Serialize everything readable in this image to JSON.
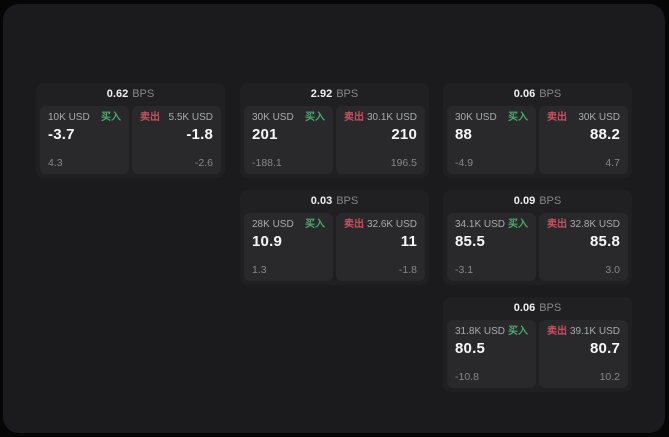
{
  "labels": {
    "bps_suffix": "BPS",
    "buy": "买入",
    "sell": "卖出"
  },
  "colors": {
    "buy_green": "#4aa96e",
    "sell_red": "#c4515f",
    "window_bg": "#1b1b1d",
    "card_bg": "#202022",
    "tile_bg": "#29292b"
  },
  "cards": [
    {
      "bps": "0.62",
      "buy": {
        "amount": "10K USD",
        "value": "-3.7",
        "delta": "4.3"
      },
      "sell": {
        "amount": "5.5K USD",
        "value": "-1.8",
        "delta": "-2.6"
      }
    },
    {
      "bps": "2.92",
      "buy": {
        "amount": "30K USD",
        "value": "201",
        "delta": "-188.1"
      },
      "sell": {
        "amount": "30.1K USD",
        "value": "210",
        "delta": "196.5"
      }
    },
    {
      "bps": "0.06",
      "buy": {
        "amount": "30K USD",
        "value": "88",
        "delta": "-4.9"
      },
      "sell": {
        "amount": "30K USD",
        "value": "88.2",
        "delta": "4.7"
      }
    },
    {
      "bps": "0.03",
      "buy": {
        "amount": "28K USD",
        "value": "10.9",
        "delta": "1.3"
      },
      "sell": {
        "amount": "32.6K USD",
        "value": "11",
        "delta": "-1.8"
      }
    },
    {
      "bps": "0.09",
      "buy": {
        "amount": "34.1K USD",
        "value": "85.5",
        "delta": "-3.1"
      },
      "sell": {
        "amount": "32.8K USD",
        "value": "85.8",
        "delta": "3.0"
      }
    },
    {
      "bps": "0.06",
      "buy": {
        "amount": "31.8K USD",
        "value": "80.5",
        "delta": "-10.8"
      },
      "sell": {
        "amount": "39.1K USD",
        "value": "80.7",
        "delta": "10.2"
      }
    }
  ]
}
